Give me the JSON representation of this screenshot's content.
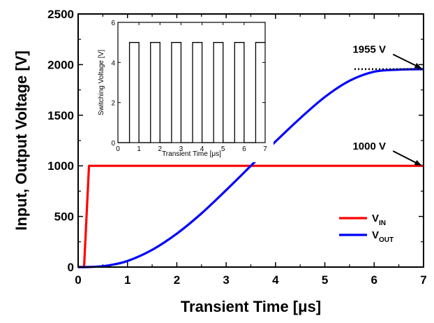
{
  "chart_data": [
    {
      "type": "line",
      "xlabel": "Transient Time [μs]",
      "ylabel": "Input, Output Voltage [V]",
      "xlim": [
        0,
        7
      ],
      "ylim": [
        0,
        2500
      ],
      "xticks": [
        0,
        1,
        2,
        3,
        4,
        5,
        6,
        7
      ],
      "yticks": [
        0,
        500,
        1000,
        1500,
        2000,
        2500
      ],
      "grid": false,
      "legend_position": "bottom-right",
      "series": [
        {
          "name": "V_IN",
          "legend_main": "V",
          "legend_sub": "IN",
          "color": "#ff0000",
          "x": [
            0,
            0.12,
            0.22,
            7
          ],
          "y": [
            0,
            0,
            1000,
            1000
          ]
        },
        {
          "name": "V_OUT",
          "legend_main": "V",
          "legend_sub": "OUT",
          "color": "#0000ff",
          "x": [
            0,
            0.3,
            0.6,
            1.0,
            1.5,
            2.0,
            2.5,
            3.0,
            3.5,
            4.0,
            4.5,
            5.0,
            5.5,
            6.0,
            6.5,
            7.0
          ],
          "y": [
            0,
            2,
            15,
            60,
            170,
            330,
            530,
            760,
            1000,
            1240,
            1470,
            1680,
            1840,
            1930,
            1950,
            1955
          ]
        }
      ],
      "annotations": [
        {
          "text": "1955 V",
          "x": 5.9,
          "y": 2115,
          "arrow_to": [
            6.95,
            1965
          ]
        },
        {
          "text": "1000 V",
          "x": 5.9,
          "y": 1160,
          "arrow_to": [
            6.95,
            1005
          ]
        }
      ],
      "reference_lines": [
        {
          "style": "dotted",
          "x": [
            5.6,
            7.0
          ],
          "y": 1955,
          "color": "#000000"
        }
      ]
    },
    {
      "type": "line",
      "role": "inset",
      "xlabel": "Transient Time [μs]",
      "ylabel": "Switching Voltage [V]",
      "xlim": [
        0,
        7
      ],
      "ylim": [
        0,
        6
      ],
      "xticks": [
        0,
        1,
        2,
        3,
        4,
        5,
        6,
        7
      ],
      "yticks": [
        0,
        2,
        4,
        6
      ],
      "series": [
        {
          "color": "#000000",
          "x": [
            0,
            0.55,
            0.55,
            1.0,
            1.0,
            1.55,
            1.55,
            2.0,
            2.0,
            2.55,
            2.55,
            3.0,
            3.0,
            3.55,
            3.55,
            4.0,
            4.0,
            4.55,
            4.55,
            5.0,
            5.0,
            5.55,
            5.55,
            6.0,
            6.0,
            6.55,
            6.55,
            7.0
          ],
          "y": [
            0,
            0,
            5,
            5,
            0,
            0,
            5,
            5,
            0,
            0,
            5,
            5,
            0,
            0,
            5,
            5,
            0,
            0,
            5,
            5,
            0,
            0,
            5,
            5,
            0,
            0,
            5,
            5
          ]
        }
      ]
    }
  ]
}
